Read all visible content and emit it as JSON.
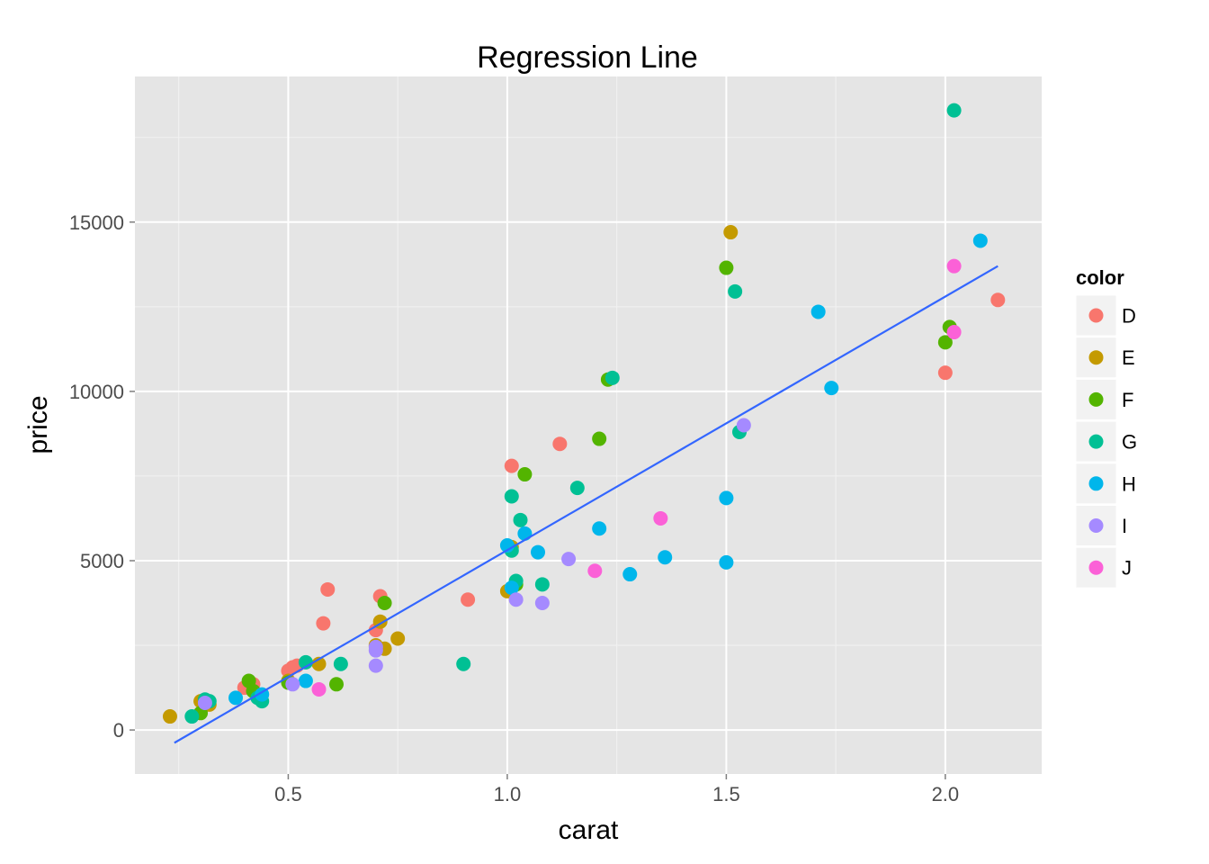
{
  "chart_data": {
    "type": "scatter",
    "title": "Regression Line",
    "xlabel": "carat",
    "ylabel": "price",
    "xlim": [
      0.15,
      2.22
    ],
    "ylim": [
      -1300,
      19300
    ],
    "xticks": [
      {
        "v": 0.5,
        "label": "0.5"
      },
      {
        "v": 1.0,
        "label": "1.0"
      },
      {
        "v": 1.5,
        "label": "1.5"
      },
      {
        "v": 2.0,
        "label": "2.0"
      }
    ],
    "yticks": [
      {
        "v": 0,
        "label": "0"
      },
      {
        "v": 5000,
        "label": "5000"
      },
      {
        "v": 10000,
        "label": "10000"
      },
      {
        "v": 15000,
        "label": "15000"
      }
    ],
    "grid": true,
    "legend": {
      "title": "color",
      "position": "right",
      "entries": [
        {
          "label": "D",
          "color": "#F8766D"
        },
        {
          "label": "E",
          "color": "#C49A00"
        },
        {
          "label": "F",
          "color": "#53B400"
        },
        {
          "label": "G",
          "color": "#00C094"
        },
        {
          "label": "H",
          "color": "#00B6EB"
        },
        {
          "label": "I",
          "color": "#A58AFF"
        },
        {
          "label": "J",
          "color": "#FB61D7"
        }
      ]
    },
    "regression_line": {
      "x": [
        0.24,
        2.12
      ],
      "y": [
        -380,
        13700
      ],
      "color": "#3366FF"
    },
    "series": [
      {
        "name": "D",
        "color": "#F8766D",
        "points": [
          [
            0.5,
            1750
          ],
          [
            0.51,
            1850
          ],
          [
            0.52,
            1900
          ],
          [
            0.41,
            1300
          ],
          [
            0.42,
            1350
          ],
          [
            0.4,
            1250
          ],
          [
            0.58,
            3150
          ],
          [
            0.59,
            4150
          ],
          [
            0.7,
            2950
          ],
          [
            0.71,
            3950
          ],
          [
            0.91,
            3850
          ],
          [
            1.01,
            7800
          ],
          [
            1.12,
            8450
          ],
          [
            2.0,
            10550
          ],
          [
            2.12,
            12700
          ]
        ]
      },
      {
        "name": "E",
        "color": "#C49A00",
        "points": [
          [
            0.23,
            400
          ],
          [
            0.3,
            850
          ],
          [
            0.32,
            750
          ],
          [
            0.5,
            1450
          ],
          [
            0.57,
            1950
          ],
          [
            0.7,
            2500
          ],
          [
            0.71,
            3200
          ],
          [
            0.72,
            2400
          ],
          [
            0.75,
            2700
          ],
          [
            1.0,
            4100
          ],
          [
            1.01,
            5400
          ],
          [
            1.51,
            14700
          ]
        ]
      },
      {
        "name": "F",
        "color": "#53B400",
        "points": [
          [
            0.3,
            500
          ],
          [
            0.41,
            1450
          ],
          [
            0.42,
            1150
          ],
          [
            0.5,
            1400
          ],
          [
            0.61,
            1350
          ],
          [
            0.72,
            3750
          ],
          [
            1.02,
            4300
          ],
          [
            1.04,
            7550
          ],
          [
            1.21,
            8600
          ],
          [
            1.23,
            10350
          ],
          [
            1.5,
            13650
          ],
          [
            2.0,
            11450
          ],
          [
            2.01,
            11900
          ]
        ]
      },
      {
        "name": "G",
        "color": "#00C094",
        "points": [
          [
            0.28,
            400
          ],
          [
            0.31,
            900
          ],
          [
            0.32,
            850
          ],
          [
            0.43,
            950
          ],
          [
            0.44,
            850
          ],
          [
            0.54,
            2000
          ],
          [
            0.62,
            1950
          ],
          [
            0.9,
            1950
          ],
          [
            1.01,
            5300
          ],
          [
            1.01,
            6900
          ],
          [
            1.02,
            4400
          ],
          [
            1.03,
            6200
          ],
          [
            1.08,
            4300
          ],
          [
            1.16,
            7150
          ],
          [
            1.24,
            10400
          ],
          [
            1.52,
            12950
          ],
          [
            1.53,
            8800
          ],
          [
            2.02,
            18300
          ]
        ]
      },
      {
        "name": "H",
        "color": "#00B6EB",
        "points": [
          [
            0.38,
            950
          ],
          [
            0.44,
            1050
          ],
          [
            0.54,
            1450
          ],
          [
            1.0,
            5450
          ],
          [
            1.01,
            4200
          ],
          [
            1.04,
            5800
          ],
          [
            1.07,
            5250
          ],
          [
            1.21,
            5950
          ],
          [
            1.28,
            4600
          ],
          [
            1.36,
            5100
          ],
          [
            1.5,
            6850
          ],
          [
            1.5,
            4950
          ],
          [
            1.71,
            12350
          ],
          [
            1.74,
            10100
          ],
          [
            2.08,
            14450
          ]
        ]
      },
      {
        "name": "I",
        "color": "#A58AFF",
        "points": [
          [
            0.31,
            800
          ],
          [
            0.51,
            1350
          ],
          [
            0.7,
            1900
          ],
          [
            0.7,
            2350
          ],
          [
            0.7,
            2450
          ],
          [
            1.02,
            3850
          ],
          [
            1.08,
            3750
          ],
          [
            1.14,
            5050
          ],
          [
            1.54,
            9000
          ]
        ]
      },
      {
        "name": "J",
        "color": "#FB61D7",
        "points": [
          [
            0.57,
            1200
          ],
          [
            1.2,
            4700
          ],
          [
            1.35,
            6250
          ],
          [
            2.02,
            13700
          ],
          [
            2.02,
            11750
          ]
        ]
      }
    ]
  }
}
